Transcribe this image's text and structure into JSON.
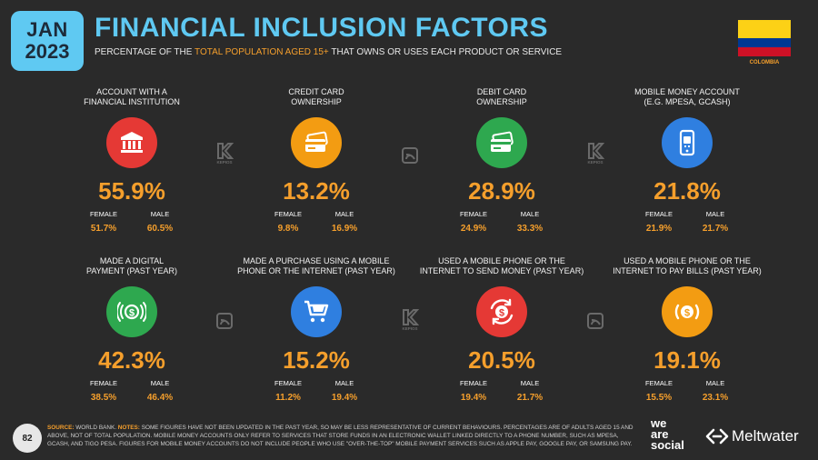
{
  "header": {
    "date_month": "JAN",
    "date_year": "2023",
    "title": "FINANCIAL INCLUSION FACTORS",
    "subtitle_pre": "PERCENTAGE OF THE ",
    "subtitle_highlight": "TOTAL POPULATION AGED 15+",
    "subtitle_post": " THAT OWNS OR USES EACH PRODUCT OR SERVICE",
    "country": "COLOMBIA"
  },
  "colors": {
    "accent": "#f59f2c",
    "title_blue": "#5fc9f2",
    "background": "#2a2a2a"
  },
  "split_labels": {
    "female": "FEMALE",
    "male": "MALE"
  },
  "cards": [
    {
      "label_line1": "ACCOUNT WITH A",
      "label_line2": "FINANCIAL INSTITUTION",
      "icon": "bank-icon",
      "icon_color": "#e53935",
      "value": "55.9%",
      "female": "51.7%",
      "male": "60.5%"
    },
    {
      "label_line1": "CREDIT CARD",
      "label_line2": "OWNERSHIP",
      "icon": "credit-card-icon",
      "icon_color": "#f39c12",
      "value": "13.2%",
      "female": "9.8%",
      "male": "16.9%"
    },
    {
      "label_line1": "DEBIT CARD",
      "label_line2": "OWNERSHIP",
      "icon": "debit-card-icon",
      "icon_color": "#2ea84f",
      "value": "28.9%",
      "female": "24.9%",
      "male": "33.3%"
    },
    {
      "label_line1": "MOBILE MONEY ACCOUNT",
      "label_line2": "(E.G. MPESA, GCASH)",
      "icon": "mobile-money-icon",
      "icon_color": "#2f7fe0",
      "value": "21.8%",
      "female": "21.9%",
      "male": "21.7%"
    },
    {
      "label_line1": "MADE A DIGITAL",
      "label_line2": "PAYMENT (PAST YEAR)",
      "icon": "digital-payment-icon",
      "icon_color": "#2ea84f",
      "value": "42.3%",
      "female": "38.5%",
      "male": "46.4%"
    },
    {
      "label_line1": "MADE A PURCHASE USING A MOBILE",
      "label_line2": "PHONE OR THE INTERNET (PAST YEAR)",
      "icon": "shopping-cart-icon",
      "icon_color": "#2f7fe0",
      "value": "15.2%",
      "female": "11.2%",
      "male": "19.4%"
    },
    {
      "label_line1": "USED A MOBILE PHONE OR THE",
      "label_line2": "INTERNET TO SEND MONEY (PAST YEAR)",
      "icon": "send-money-icon",
      "icon_color": "#e53935",
      "value": "20.5%",
      "female": "19.4%",
      "male": "21.7%"
    },
    {
      "label_line1": "USED A MOBILE PHONE OR THE",
      "label_line2": "INTERNET TO PAY BILLS (PAST YEAR)",
      "icon": "pay-bills-icon",
      "icon_color": "#f39c12",
      "value": "19.1%",
      "female": "15.5%",
      "male": "23.1%"
    }
  ],
  "watermarks": {
    "kepios": "KEPIOS"
  },
  "footer": {
    "page_number": "82",
    "source_label": "SOURCE:",
    "source_text": " WORLD BANK. ",
    "notes_label": "NOTES:",
    "notes_text": " SOME FIGURES HAVE NOT BEEN UPDATED IN THE PAST YEAR, SO MAY BE LESS REPRESENTATIVE OF CURRENT BEHAVIOURS. PERCENTAGES ARE OF ADULTS AGED 15 AND ABOVE, NOT OF TOTAL POPULATION. MOBILE MONEY ACCOUNTS ONLY REFER TO SERVICES THAT STORE FUNDS IN AN ELECTRONIC WALLET LINKED DIRECTLY TO A PHONE NUMBER, SUCH AS MPESA, GCASH, AND TIGO PESA. FIGURES FOR MOBILE MONEY ACCOUNTS DO NOT INCLUDE PEOPLE WHO USE \"OVER-THE-TOP\" MOBILE PAYMENT SERVICES SUCH AS APPLE PAY, GOOGLE PAY, OR SAMSUNG PAY.",
    "brand1_line1": "we",
    "brand1_line2": "are",
    "brand1_line3": "social",
    "brand2": "Meltwater"
  }
}
